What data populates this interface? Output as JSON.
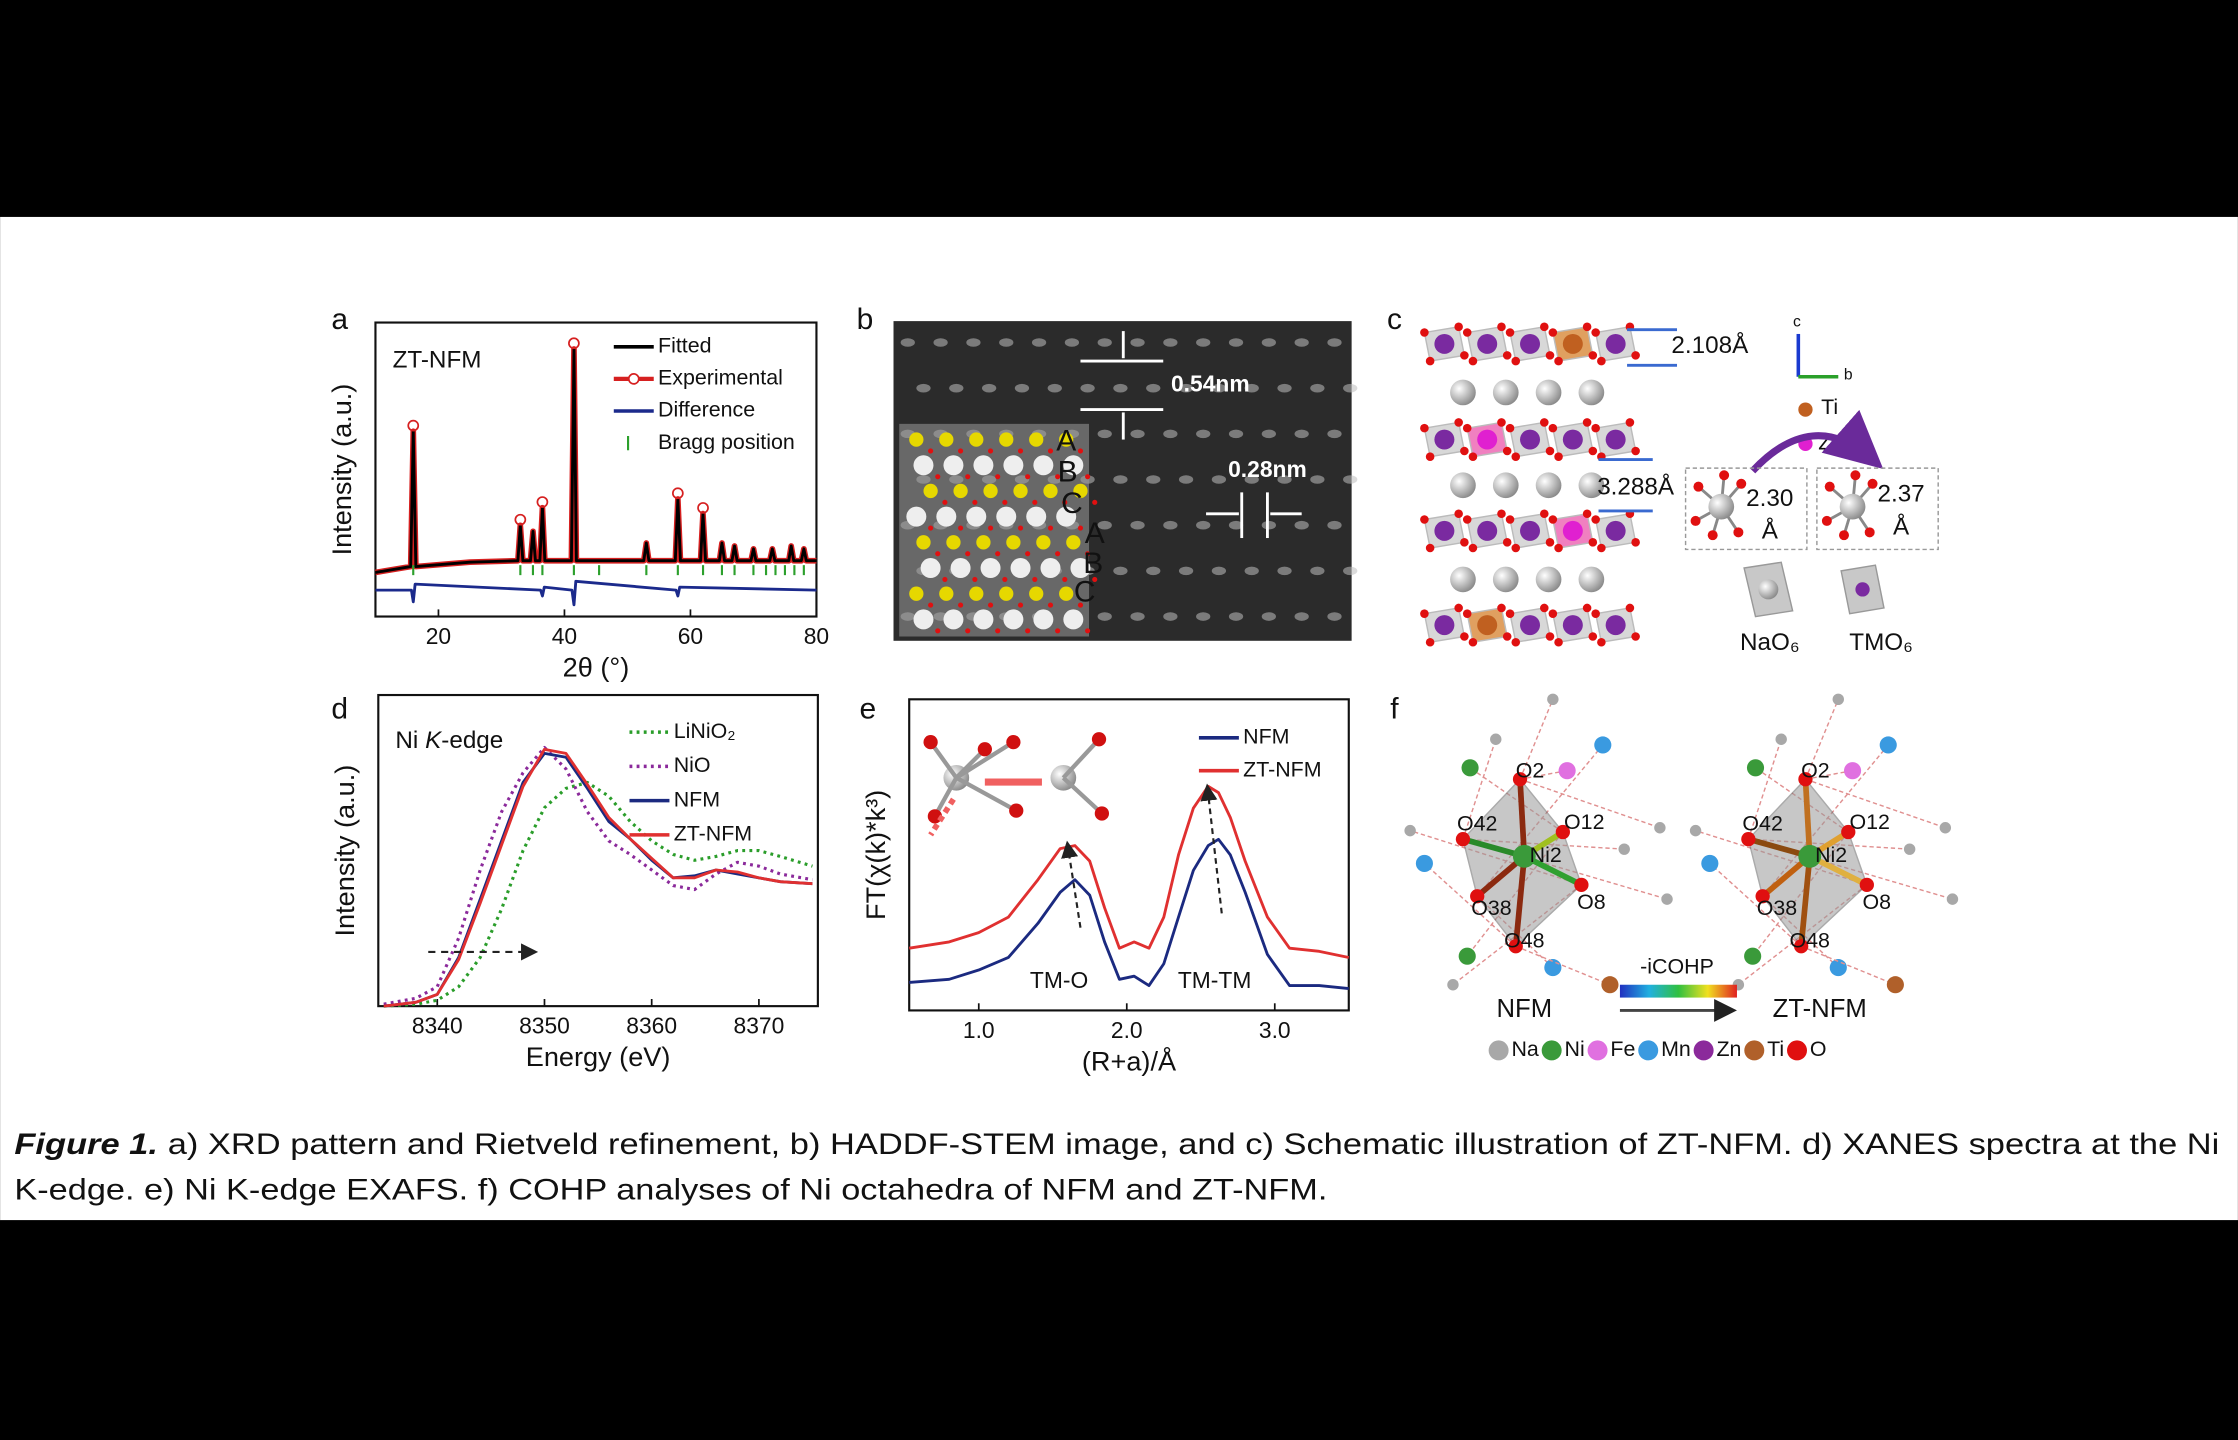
{
  "panel_labels": [
    "a",
    "b",
    "c",
    "d",
    "e",
    "f"
  ],
  "chart_data": [
    {
      "type": "line",
      "title": "ZT-NFM",
      "xlabel": "2θ (°)",
      "ylabel": "Intensity (a.u.)",
      "xlim": [
        10,
        80
      ],
      "xticks": [
        20,
        40,
        60,
        80
      ],
      "ylim": [
        0,
        100
      ],
      "series": [
        {
          "name": "Fitted",
          "color": "#000000",
          "x": [
            10,
            15.6,
            16,
            16.4,
            25,
            32.6,
            33,
            33.4,
            34.6,
            35,
            35.4,
            36.1,
            36.5,
            36.9,
            41.1,
            41.5,
            41.9,
            52.6,
            53,
            53.4,
            57.6,
            58,
            58.4,
            61.6,
            62,
            62.4,
            64.6,
            65,
            65.4,
            66.6,
            67,
            67.4,
            69.6,
            70,
            70.4,
            72.6,
            73,
            73.4,
            75.6,
            76,
            76.4,
            77.6,
            78,
            78.4,
            80
          ],
          "values": [
            15,
            17,
            63,
            17,
            18.5,
            19,
            31,
            19,
            19,
            29,
            19,
            19,
            37,
            19,
            19,
            91,
            19,
            19,
            25,
            19,
            19,
            40,
            19,
            19,
            35,
            19,
            19,
            25,
            19,
            19,
            24,
            19,
            19,
            23,
            19,
            19,
            23,
            19,
            19,
            24,
            19,
            19,
            23,
            19,
            19
          ]
        },
        {
          "name": "Experimental",
          "color": "#d62020",
          "marker": "o",
          "x": [
            10,
            15.6,
            16,
            16.4,
            25,
            32.6,
            33,
            33.4,
            34.6,
            35,
            35.4,
            36.1,
            36.5,
            36.9,
            41.1,
            41.5,
            41.9,
            52.6,
            53,
            53.4,
            57.6,
            58,
            58.4,
            61.6,
            62,
            62.4,
            64.6,
            65,
            65.4,
            66.6,
            67,
            67.4,
            69.6,
            70,
            70.4,
            72.6,
            73,
            73.4,
            75.6,
            76,
            76.4,
            77.6,
            78,
            78.4,
            80
          ],
          "values": [
            15,
            17,
            63,
            17,
            18.5,
            19,
            31,
            19,
            19,
            29,
            19,
            19,
            37,
            19,
            19,
            91,
            19,
            19,
            25,
            19,
            19,
            40,
            19,
            19,
            35,
            19,
            19,
            25,
            19,
            19,
            24,
            19,
            19,
            23,
            19,
            19,
            23,
            19,
            19,
            24,
            19,
            19,
            23,
            19,
            19
          ]
        },
        {
          "name": "Difference",
          "color": "#1b2a8c",
          "x": [
            10,
            15.7,
            16,
            16.3,
            36.2,
            36.5,
            36.8,
            41.2,
            41.5,
            41.8,
            57.7,
            58,
            58.3,
            80
          ],
          "values": [
            9,
            9,
            5,
            11,
            9,
            7,
            10,
            9,
            4,
            12,
            9,
            7,
            10,
            9
          ]
        },
        {
          "name": "Bragg position",
          "color": "#2ca02c",
          "x": [
            16,
            33,
            35,
            36.5,
            41.5,
            45.5,
            53,
            58,
            62,
            65,
            67,
            70,
            72,
            73.5,
            75,
            76.5,
            78
          ]
        }
      ]
    },
    {
      "type": "line",
      "annotation": [
        "Ni ",
        "K",
        "-edge"
      ],
      "xlabel": "Energy (eV)",
      "ylabel": "Intensity (a.u.)",
      "xlim": [
        8334.5,
        8375.5
      ],
      "xticks": [
        8340,
        8350,
        8360,
        8370
      ],
      "ylim": [
        0,
        1.6
      ],
      "series": [
        {
          "name": "LiNiO₂",
          "color": "#2a9d2a",
          "dotted": true,
          "x": [
            8335,
            8338,
            8340,
            8342,
            8344,
            8346,
            8348,
            8350,
            8352,
            8354,
            8356,
            8358,
            8360,
            8362,
            8364,
            8366,
            8368,
            8370,
            8372,
            8375
          ],
          "values": [
            0,
            0.01,
            0.03,
            0.1,
            0.25,
            0.5,
            0.8,
            1.02,
            1.12,
            1.15,
            1.08,
            0.95,
            0.85,
            0.78,
            0.75,
            0.77,
            0.8,
            0.8,
            0.77,
            0.72
          ]
        },
        {
          "name": "NiO",
          "color": "#8b2a9b",
          "dotted": true,
          "x": [
            8335,
            8338,
            8340,
            8342,
            8344,
            8346,
            8348,
            8350,
            8352,
            8354,
            8356,
            8358,
            8360,
            8362,
            8364,
            8366,
            8368,
            8370,
            8372,
            8375
          ],
          "values": [
            0.01,
            0.04,
            0.1,
            0.35,
            0.7,
            1.0,
            1.2,
            1.33,
            1.22,
            1.0,
            0.85,
            0.78,
            0.7,
            0.62,
            0.6,
            0.68,
            0.74,
            0.72,
            0.68,
            0.65
          ]
        },
        {
          "name": "NFM",
          "color": "#1b2a80",
          "x": [
            8335,
            8338,
            8340,
            8342,
            8344,
            8346,
            8348,
            8350,
            8352,
            8354,
            8356,
            8358,
            8360,
            8362,
            8364,
            8366,
            8368,
            8370,
            8372,
            8375
          ],
          "values": [
            0,
            0.02,
            0.06,
            0.25,
            0.55,
            0.85,
            1.15,
            1.3,
            1.28,
            1.12,
            0.95,
            0.86,
            0.75,
            0.66,
            0.67,
            0.7,
            0.68,
            0.66,
            0.64,
            0.63
          ]
        },
        {
          "name": "ZT-NFM",
          "color": "#e03030",
          "x": [
            8335,
            8338,
            8340,
            8342,
            8344,
            8346,
            8348,
            8350,
            8352,
            8354,
            8356,
            8358,
            8360,
            8362,
            8364,
            8366,
            8368,
            8370,
            8372,
            8375
          ],
          "values": [
            0,
            0.02,
            0.06,
            0.24,
            0.53,
            0.83,
            1.13,
            1.32,
            1.3,
            1.14,
            0.97,
            0.86,
            0.76,
            0.66,
            0.66,
            0.7,
            0.69,
            0.66,
            0.64,
            0.63
          ]
        }
      ]
    },
    {
      "type": "line",
      "xlabel": "(R+a)/Å",
      "ylabel": "FT(χ(k)*k³)",
      "annotations": [
        "TM-O",
        "TM-TM"
      ],
      "xlim": [
        0.53,
        3.5
      ],
      "xticks": [
        {
          "value": 1,
          "label": "1.0"
        },
        {
          "value": 2,
          "label": "2.0"
        },
        {
          "value": 3,
          "label": "3.0"
        }
      ],
      "ylim": [
        0,
        1
      ],
      "series": [
        {
          "name": "NFM",
          "color": "#1b2a80",
          "x": [
            0.53,
            0.8,
            1.0,
            1.2,
            1.4,
            1.55,
            1.65,
            1.75,
            1.85,
            1.95,
            2.05,
            2.15,
            2.25,
            2.35,
            2.45,
            2.55,
            2.62,
            2.7,
            2.8,
            2.95,
            3.1,
            3.3,
            3.5
          ],
          "values": [
            0.09,
            0.1,
            0.13,
            0.17,
            0.28,
            0.38,
            0.42,
            0.37,
            0.22,
            0.1,
            0.11,
            0.08,
            0.15,
            0.3,
            0.45,
            0.53,
            0.55,
            0.5,
            0.38,
            0.18,
            0.08,
            0.08,
            0.07
          ]
        },
        {
          "name": "ZT-NFM",
          "color": "#e03030",
          "x": [
            0.53,
            0.8,
            1.0,
            1.2,
            1.4,
            1.55,
            1.65,
            1.75,
            1.85,
            1.95,
            2.05,
            2.15,
            2.25,
            2.35,
            2.45,
            2.55,
            2.62,
            2.7,
            2.8,
            2.95,
            3.1,
            3.3,
            3.5
          ],
          "values": [
            0.2,
            0.22,
            0.25,
            0.3,
            0.42,
            0.52,
            0.53,
            0.48,
            0.33,
            0.2,
            0.22,
            0.2,
            0.3,
            0.5,
            0.65,
            0.72,
            0.7,
            0.62,
            0.48,
            0.3,
            0.2,
            0.19,
            0.17
          ]
        }
      ]
    }
  ],
  "stem": {
    "scales": [
      "0.54nm",
      "0.28nm"
    ],
    "stacking": [
      "A",
      "B",
      "C",
      "A",
      "B",
      "C"
    ]
  },
  "structure": {
    "distances": [
      "2.108Å",
      "3.288Å"
    ],
    "axes": [
      "c",
      "b"
    ],
    "dopants": [
      "Ti",
      "Zn"
    ],
    "bonds": [
      {
        "value": "2.30",
        "unit": "Å"
      },
      {
        "value": "2.37",
        "unit": "Å"
      }
    ],
    "polyhedra": [
      "NaO₆",
      "TMO₆"
    ]
  },
  "cohp": {
    "atoms": [
      "O2",
      "O42",
      "O12",
      "Ni2",
      "O38",
      "O8",
      "O48"
    ],
    "structures": [
      "NFM",
      "ZT-NFM"
    ],
    "scale_label": "-iCOHP",
    "elements": [
      {
        "name": "Na",
        "color": "#a8a8a8"
      },
      {
        "name": "Ni",
        "color": "#3a9a3a"
      },
      {
        "name": "Fe",
        "color": "#e070e0"
      },
      {
        "name": "Mn",
        "color": "#3a9ae0"
      },
      {
        "name": "Zn",
        "color": "#8b2a9b"
      },
      {
        "name": "Ti",
        "color": "#b0602a"
      },
      {
        "name": "O",
        "color": "#e01010"
      }
    ]
  },
  "caption": {
    "label": "Figure 1.",
    "lines": [
      "a) XRD pattern and Rietveld refinement, b) HADDF-STEM image, and c) Schematic illustration of ZT-NFM. d) XANES spectra at the Ni",
      "K-edge. e) Ni K-edge EXAFS. f) COHP analyses of Ni octahedra of NFM and ZT-NFM."
    ]
  }
}
